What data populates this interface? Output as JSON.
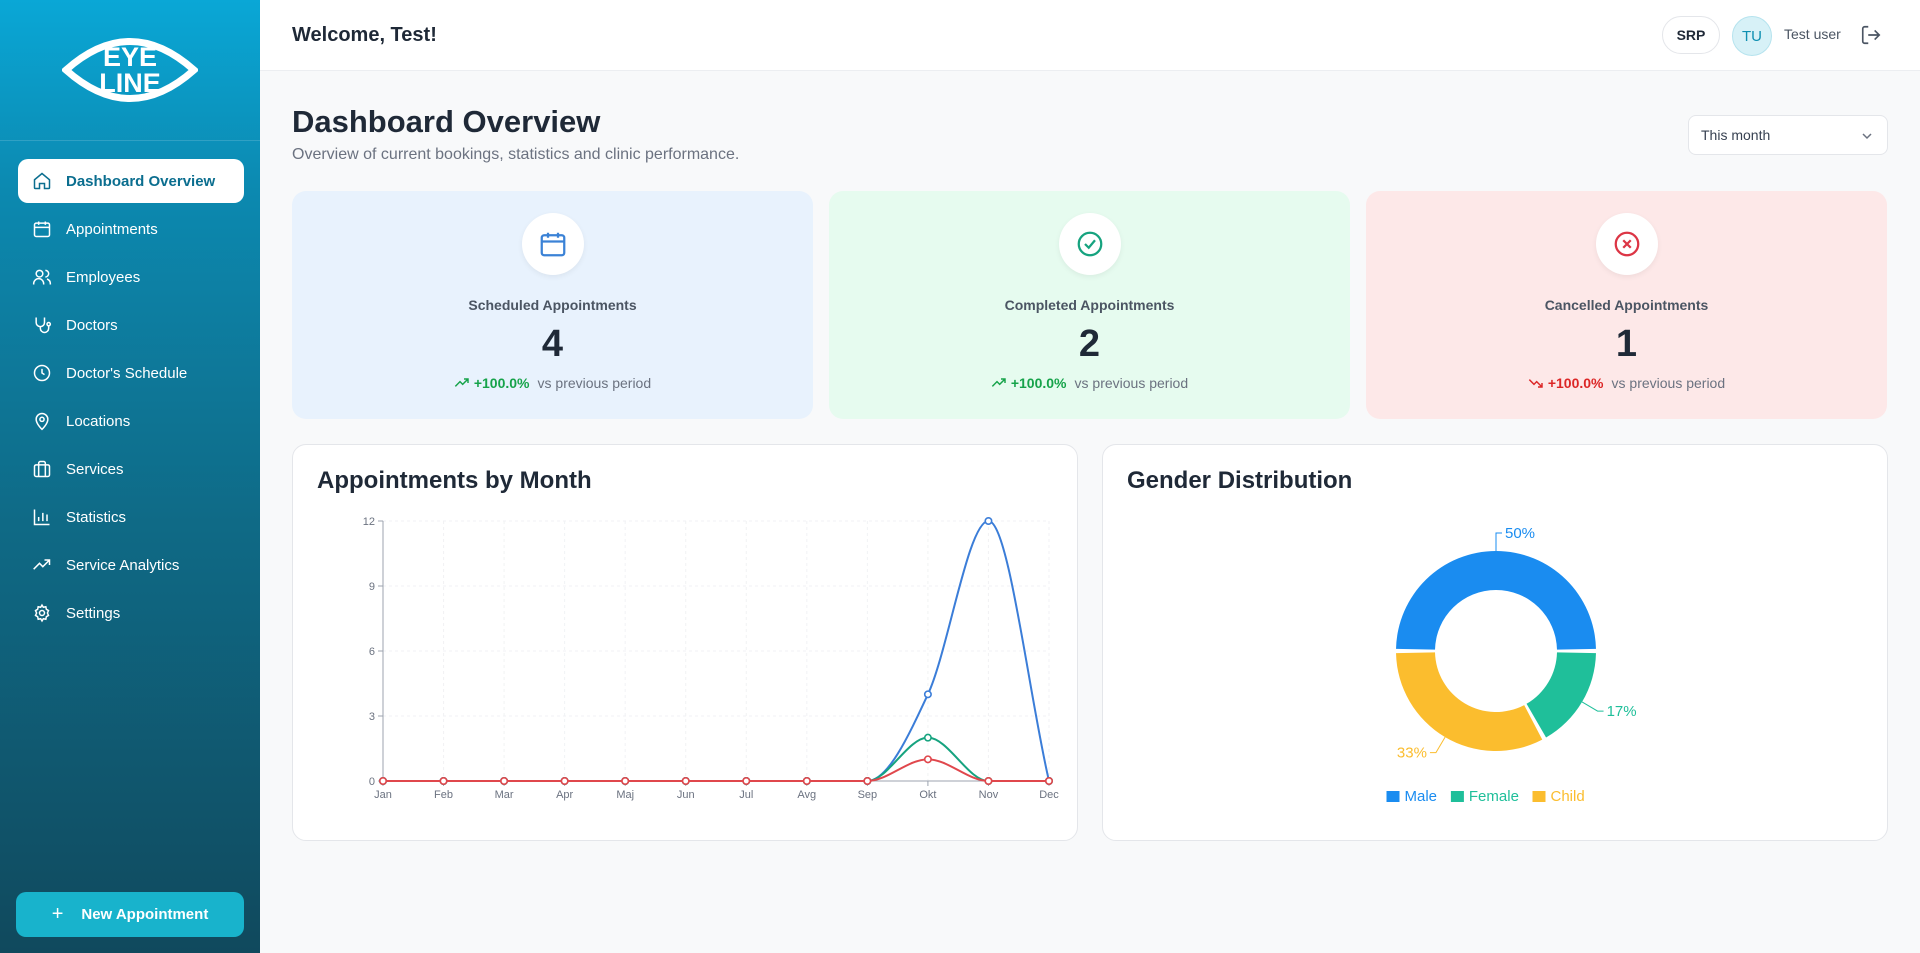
{
  "brand": {
    "logo_line1": "EYE",
    "logo_line2": "LINE"
  },
  "sidebar": {
    "items": [
      {
        "label": "Dashboard Overview",
        "icon": "home-icon",
        "active": true
      },
      {
        "label": "Appointments",
        "icon": "calendar-icon"
      },
      {
        "label": "Employees",
        "icon": "users-icon"
      },
      {
        "label": "Doctors",
        "icon": "stethoscope-icon"
      },
      {
        "label": "Doctor's Schedule",
        "icon": "clock-icon"
      },
      {
        "label": "Locations",
        "icon": "map-pin-icon"
      },
      {
        "label": "Services",
        "icon": "briefcase-icon"
      },
      {
        "label": "Statistics",
        "icon": "bar-chart-icon"
      },
      {
        "label": "Service Analytics",
        "icon": "trending-up-icon"
      },
      {
        "label": "Settings",
        "icon": "gear-icon"
      }
    ],
    "new_appointment": "New Appointment"
  },
  "header": {
    "welcome": "Welcome, Test!",
    "language": "SRP",
    "avatar_initials": "TU",
    "username": "Test user"
  },
  "main": {
    "title": "Dashboard Overview",
    "subtitle": "Overview of current bookings, statistics and clinic performance.",
    "period": "This month"
  },
  "stats": [
    {
      "label": "Scheduled Appointments",
      "value": "4",
      "change": "+100.0%",
      "direction": "up",
      "suffix": "vs previous period",
      "bg": "#e8f2fd",
      "accent": "#3b82d6"
    },
    {
      "label": "Completed Appointments",
      "value": "2",
      "change": "+100.0%",
      "direction": "up",
      "suffix": "vs previous period",
      "bg": "#e6fbef",
      "accent": "#16a37f"
    },
    {
      "label": "Cancelled Appointments",
      "value": "1",
      "change": "+100.0%",
      "direction": "down",
      "suffix": "vs previous period",
      "bg": "#fde8e8",
      "accent": "#dc3545"
    }
  ],
  "colors": {
    "up": "#16a34a",
    "down": "#dc2626",
    "male": "#1a8cf0",
    "female": "#1fbf9a",
    "child": "#fbbd2e"
  },
  "chart_data": [
    {
      "type": "line",
      "title": "Appointments by Month",
      "categories": [
        "Jan",
        "Feb",
        "Mar",
        "Apr",
        "Maj",
        "Jun",
        "Jul",
        "Avg",
        "Sep",
        "Okt",
        "Nov",
        "Dec"
      ],
      "ylim": [
        0,
        12
      ],
      "yticks": [
        0,
        3,
        6,
        9,
        12
      ],
      "grid": true,
      "series": [
        {
          "color": "#3b7dd8",
          "values": [
            0,
            0,
            0,
            0,
            0,
            0,
            0,
            0,
            0,
            4,
            12,
            0
          ]
        },
        {
          "color": "#16a37f",
          "values": [
            0,
            0,
            0,
            0,
            0,
            0,
            0,
            0,
            0,
            2,
            0,
            0
          ]
        },
        {
          "color": "#e0474c",
          "values": [
            0,
            0,
            0,
            0,
            0,
            0,
            0,
            0,
            0,
            1,
            0,
            0
          ]
        }
      ]
    },
    {
      "type": "pie",
      "title": "Gender Distribution",
      "slices": [
        {
          "name": "Male",
          "value": 50,
          "label": "50%",
          "color": "#1a8cf0"
        },
        {
          "name": "Child",
          "value": 33,
          "label": "33%",
          "color": "#fbbd2e"
        },
        {
          "name": "Female",
          "value": 17,
          "label": "17%",
          "color": "#1fbf9a"
        }
      ],
      "legend": [
        "Male",
        "Female",
        "Child"
      ],
      "legend_position": "bottom"
    }
  ]
}
